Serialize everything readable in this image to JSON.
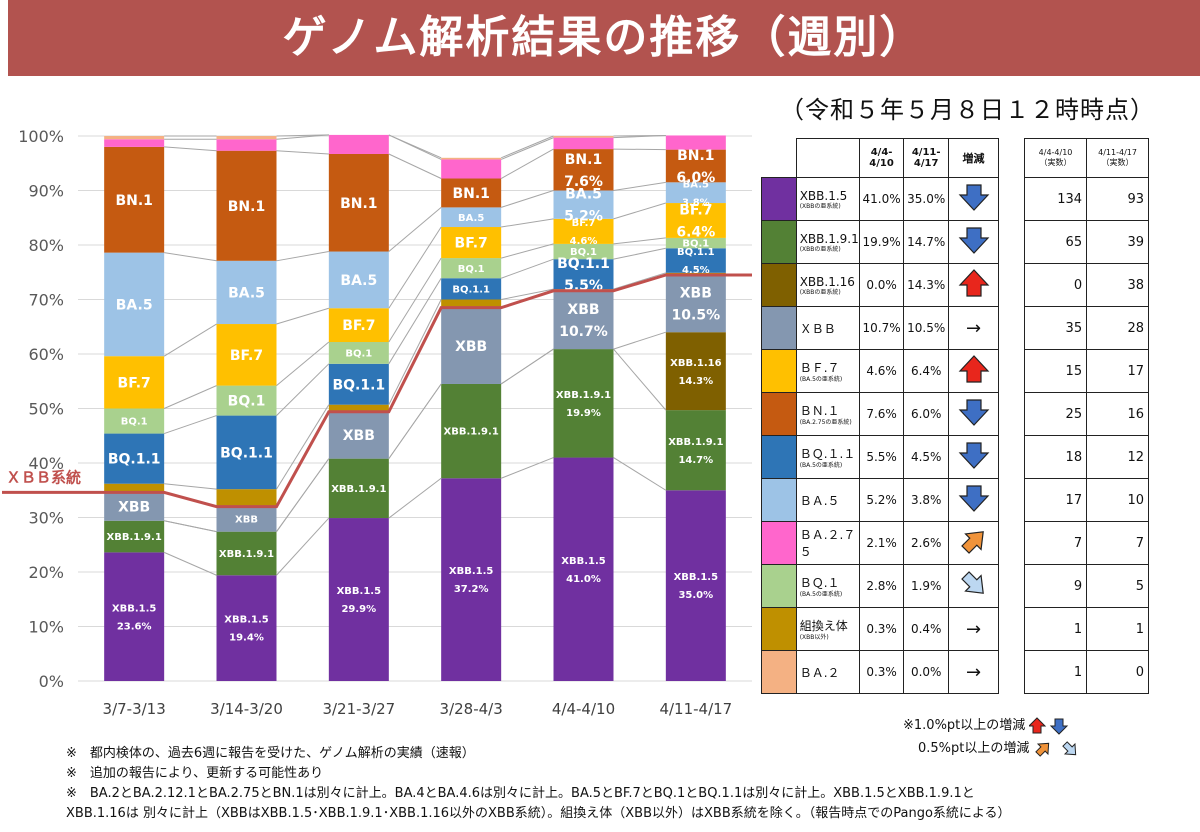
{
  "header": {
    "title": "ゲノム解析結果の推移（週別）",
    "as_of": "（令和５年５月８日１２時時点）"
  },
  "chart_data": {
    "type": "bar",
    "stacked": true,
    "percent_stacked": true,
    "categories": [
      "3/7-3/13",
      "3/14-3/20",
      "3/21-3/27",
      "3/28-4/3",
      "4/4-4/10",
      "4/11-4/17"
    ],
    "ylim": [
      0,
      100
    ],
    "yticks": [
      "0%",
      "10%",
      "20%",
      "30%",
      "40%",
      "50%",
      "60%",
      "70%",
      "80%",
      "90%",
      "100%"
    ],
    "gridlines": true,
    "series": [
      {
        "name": "XBB.1.5",
        "color": "#7030a0",
        "values": [
          23.6,
          19.4,
          29.9,
          37.2,
          41.0,
          35.0
        ]
      },
      {
        "name": "XBB.1.9.1",
        "color": "#538135",
        "values": [
          5.8,
          8.0,
          10.9,
          17.3,
          19.9,
          14.7
        ]
      },
      {
        "name": "XBB.1.16",
        "color": "#7f6000",
        "values": [
          0,
          0,
          0,
          0,
          0,
          14.3
        ]
      },
      {
        "name": "XBB",
        "color": "#8497b0",
        "values": [
          5.2,
          4.6,
          8.6,
          14.0,
          10.7,
          10.5
        ]
      },
      {
        "name": "組換え体(XBB以外)",
        "color": "#bf9000",
        "values": [
          1.6,
          3.2,
          1.3,
          1.5,
          0.3,
          0.4
        ]
      },
      {
        "name": "BQ.1.1",
        "color": "#2e75b6",
        "values": [
          9.2,
          13.5,
          7.5,
          3.9,
          5.5,
          4.5
        ]
      },
      {
        "name": "BQ.1",
        "color": "#a9d18e",
        "values": [
          4.6,
          5.5,
          4.0,
          3.7,
          2.8,
          1.9
        ]
      },
      {
        "name": "BF.7",
        "color": "#ffc000",
        "values": [
          9.6,
          11.3,
          6.2,
          5.7,
          4.6,
          6.4
        ]
      },
      {
        "name": "BA.5",
        "color": "#9dc3e6",
        "values": [
          19.0,
          11.6,
          10.4,
          3.6,
          5.2,
          3.8
        ]
      },
      {
        "name": "BN.1",
        "color": "#c55a11",
        "values": [
          19.4,
          20.2,
          17.9,
          5.3,
          7.6,
          6.0
        ]
      },
      {
        "name": "BA.2.75",
        "color": "#ff66cc",
        "values": [
          1.4,
          2.1,
          3.5,
          3.5,
          2.1,
          2.6
        ]
      },
      {
        "name": "BA.2",
        "color": "#f4b183",
        "values": [
          0.6,
          0.6,
          0,
          0.3,
          0.3,
          0
        ]
      }
    ],
    "bar_labels": [
      {
        "bar": 0,
        "series": "XBB.1.5",
        "lines": [
          "XBB.1.5",
          "23.6%"
        ]
      },
      {
        "bar": 0,
        "series": "XBB.1.9.1",
        "lines": [
          "XBB.1.9.1"
        ]
      },
      {
        "bar": 0,
        "series": "XBB",
        "lines": [
          "XBB"
        ]
      },
      {
        "bar": 0,
        "series": "BQ.1.1",
        "lines": [
          "BQ.1.1"
        ]
      },
      {
        "bar": 0,
        "series": "BQ.1",
        "lines": [
          "BQ.1"
        ]
      },
      {
        "bar": 0,
        "series": "BF.7",
        "lines": [
          "BF.7"
        ]
      },
      {
        "bar": 0,
        "series": "BA.5",
        "lines": [
          "BA.5"
        ]
      },
      {
        "bar": 0,
        "series": "BN.1",
        "lines": [
          "BN.1"
        ]
      },
      {
        "bar": 1,
        "series": "XBB.1.5",
        "lines": [
          "XBB.1.5",
          "19.4%"
        ]
      },
      {
        "bar": 1,
        "series": "XBB.1.9.1",
        "lines": [
          "XBB.1.9.1"
        ]
      },
      {
        "bar": 1,
        "series": "XBB",
        "lines": [
          "XBB"
        ]
      },
      {
        "bar": 1,
        "series": "BQ.1.1",
        "lines": [
          "BQ.1.1"
        ]
      },
      {
        "bar": 1,
        "series": "BQ.1",
        "lines": [
          "BQ.1"
        ]
      },
      {
        "bar": 1,
        "series": "BF.7",
        "lines": [
          "BF.7"
        ]
      },
      {
        "bar": 1,
        "series": "BA.5",
        "lines": [
          "BA.5"
        ]
      },
      {
        "bar": 1,
        "series": "BN.1",
        "lines": [
          "BN.1"
        ]
      },
      {
        "bar": 2,
        "series": "XBB.1.5",
        "lines": [
          "XBB.1.5",
          "29.9%"
        ]
      },
      {
        "bar": 2,
        "series": "XBB.1.9.1",
        "lines": [
          "XBB.1.9.1"
        ]
      },
      {
        "bar": 2,
        "series": "XBB",
        "lines": [
          "XBB"
        ]
      },
      {
        "bar": 2,
        "series": "BQ.1.1",
        "lines": [
          "BQ.1.1"
        ]
      },
      {
        "bar": 2,
        "series": "BQ.1",
        "lines": [
          "BQ.1"
        ]
      },
      {
        "bar": 2,
        "series": "BF.7",
        "lines": [
          "BF.7"
        ]
      },
      {
        "bar": 2,
        "series": "BA.5",
        "lines": [
          "BA.5"
        ]
      },
      {
        "bar": 2,
        "series": "BN.1",
        "lines": [
          "BN.1"
        ]
      },
      {
        "bar": 3,
        "series": "XBB.1.5",
        "lines": [
          "XBB.1.5",
          "37.2%"
        ]
      },
      {
        "bar": 3,
        "series": "XBB.1.9.1",
        "lines": [
          "XBB.1.9.1"
        ]
      },
      {
        "bar": 3,
        "series": "XBB",
        "lines": [
          "XBB"
        ]
      },
      {
        "bar": 3,
        "series": "BQ.1.1",
        "lines": [
          "BQ.1.1"
        ]
      },
      {
        "bar": 3,
        "series": "BQ.1",
        "lines": [
          "BQ.1"
        ]
      },
      {
        "bar": 3,
        "series": "BF.7",
        "lines": [
          "BF.7"
        ]
      },
      {
        "bar": 3,
        "series": "BA.5",
        "lines": [
          "BA.5"
        ]
      },
      {
        "bar": 3,
        "series": "BN.1",
        "lines": [
          "BN.1"
        ]
      },
      {
        "bar": 4,
        "series": "XBB.1.5",
        "lines": [
          "XBB.1.5",
          "41.0%"
        ]
      },
      {
        "bar": 4,
        "series": "XBB.1.9.1",
        "lines": [
          "XBB.1.9.1",
          "19.9%"
        ]
      },
      {
        "bar": 4,
        "series": "XBB",
        "lines": [
          "XBB",
          "10.7%"
        ]
      },
      {
        "bar": 4,
        "series": "BQ.1.1",
        "lines": [
          "BQ.1.1",
          "5.5%"
        ]
      },
      {
        "bar": 4,
        "series": "BQ.1",
        "lines": [
          "BQ.1"
        ]
      },
      {
        "bar": 4,
        "series": "BF.7",
        "lines": [
          "BF.7",
          "4.6%"
        ]
      },
      {
        "bar": 4,
        "series": "BA.5",
        "lines": [
          "BA.5",
          "5.2%"
        ]
      },
      {
        "bar": 4,
        "series": "BN.1",
        "lines": [
          "BN.1",
          "7.6%"
        ]
      },
      {
        "bar": 5,
        "series": "XBB.1.5",
        "lines": [
          "XBB.1.5",
          "35.0%"
        ]
      },
      {
        "bar": 5,
        "series": "XBB.1.9.1",
        "lines": [
          "XBB.1.9.1",
          "14.7%"
        ]
      },
      {
        "bar": 5,
        "series": "XBB.1.16",
        "lines": [
          "XBB.1.16",
          "14.3%"
        ]
      },
      {
        "bar": 5,
        "series": "XBB",
        "lines": [
          "XBB",
          "10.5%"
        ]
      },
      {
        "bar": 5,
        "series": "BQ.1.1",
        "lines": [
          "BQ.1.1",
          "4.5%"
        ]
      },
      {
        "bar": 5,
        "series": "BQ.1",
        "lines": [
          "BQ.1"
        ]
      },
      {
        "bar": 5,
        "series": "BF.7",
        "lines": [
          "BF.7",
          "6.4%"
        ]
      },
      {
        "bar": 5,
        "series": "BA.5",
        "lines": [
          "BA.5",
          "3.8%"
        ]
      },
      {
        "bar": 5,
        "series": "BN.1",
        "lines": [
          "BN.1",
          "6.0%"
        ]
      }
    ],
    "xbb_lineage_line": {
      "label": "ＸＢＢ系統",
      "color": "#c0504d",
      "values": [
        34.6,
        32.0,
        49.4,
        68.5,
        71.6,
        74.5
      ]
    }
  },
  "table": {
    "headers": {
      "w1": "4/4-\n4/10",
      "w2": "4/11-\n4/17",
      "change": "増減",
      "c1": "4/4-4/10\n（実数）",
      "c2": "4/11-4/17\n（実数）"
    },
    "rows": [
      {
        "name": "XBB.1.5",
        "sub": "(XBBの亜系統)",
        "color": "#7030a0",
        "w1": "41.0%",
        "w2": "35.0%",
        "trend": "down-big",
        "c1": "134",
        "c2": "93"
      },
      {
        "name": "XBB.1.9.1",
        "sub": "(XBBの亜系統)",
        "color": "#538135",
        "w1": "19.9%",
        "w2": "14.7%",
        "trend": "down-big",
        "c1": "65",
        "c2": "39"
      },
      {
        "name": "XBB.1.16",
        "sub": "(XBBの亜系統)",
        "color": "#7f6000",
        "w1": "0.0%",
        "w2": "14.3%",
        "trend": "up-big",
        "c1": "0",
        "c2": "38"
      },
      {
        "name": "ＸＢＢ",
        "sub": "",
        "color": "#8497b0",
        "w1": "10.7%",
        "w2": "10.5%",
        "trend": "flat",
        "c1": "35",
        "c2": "28"
      },
      {
        "name": "ＢＦ.７",
        "sub": "(BA.5の亜系統)",
        "color": "#ffc000",
        "w1": "4.6%",
        "w2": "6.4%",
        "trend": "up-big",
        "c1": "15",
        "c2": "17"
      },
      {
        "name": "ＢＮ.１",
        "sub": "(BA.2.75の亜系統)",
        "color": "#c55a11",
        "w1": "7.6%",
        "w2": "6.0%",
        "trend": "down-big",
        "c1": "25",
        "c2": "16"
      },
      {
        "name": "ＢＱ.１.１",
        "sub": "(BA.5の亜系統)",
        "color": "#2e75b6",
        "w1": "5.5%",
        "w2": "4.5%",
        "trend": "down-big",
        "c1": "18",
        "c2": "12"
      },
      {
        "name": "ＢＡ.５",
        "sub": "",
        "color": "#9dc3e6",
        "w1": "5.2%",
        "w2": "3.8%",
        "trend": "down-big",
        "c1": "17",
        "c2": "10"
      },
      {
        "name": "ＢＡ.２.７５",
        "sub": "",
        "color": "#ff66cc",
        "w1": "2.1%",
        "w2": "2.6%",
        "trend": "up-small",
        "c1": "7",
        "c2": "7"
      },
      {
        "name": "ＢＱ.１",
        "sub": "(BA.5の亜系統)",
        "color": "#a9d18e",
        "w1": "2.8%",
        "w2": "1.9%",
        "trend": "down-small",
        "c1": "9",
        "c2": "5"
      },
      {
        "name": "組換え体",
        "sub": "(XBB以外)",
        "color": "#bf9000",
        "w1": "0.3%",
        "w2": "0.4%",
        "trend": "flat",
        "c1": "1",
        "c2": "1"
      },
      {
        "name": "ＢＡ.２",
        "sub": "",
        "color": "#f4b183",
        "w1": "0.3%",
        "w2": "0.0%",
        "trend": "flat",
        "c1": "1",
        "c2": "0"
      }
    ]
  },
  "arrow_legend": {
    "big": "※1.0%pt以上の増減",
    "small": "0.5%pt以上の増減"
  },
  "footnotes": [
    "※　都内検体の、過去6週に報告を受けた、ゲノム解析の実績（速報）",
    "※　追加の報告により、更新する可能性あり",
    "※　BA.2とBA.2.12.1とBA.2.75とBN.1は別々に計上。BA.4とBA.4.6は別々に計上。BA.5とBF.7とBQ.1とBQ.1.1は別々に計上。XBB.1.5とXBB.1.9.1と",
    "XBB.1.16は 別々に計上（XBBはXBB.1.5･XBB.1.9.1･XBB.1.16以外のXBB系統）。組換え体（XBB以外）はXBB系統を除く。（報告時点でのPango系統による）"
  ]
}
